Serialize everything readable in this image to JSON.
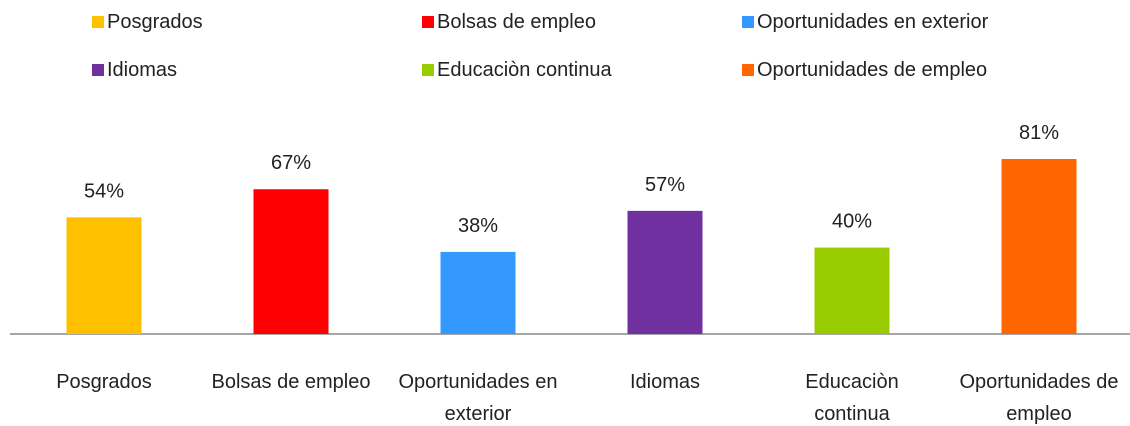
{
  "chart_data": {
    "type": "bar",
    "categories": [
      "Posgrados",
      "Bolsas de empleo",
      "Oportunidades en exterior",
      "Idiomas",
      "Educaciòn continua",
      "Oportunidades de empleo"
    ],
    "values": [
      54,
      67,
      38,
      57,
      40,
      81
    ],
    "value_labels": [
      "54%",
      "67%",
      "38%",
      "57%",
      "40%",
      "81%"
    ],
    "colors": [
      "#ffc000",
      "#ff0000",
      "#3399ff",
      "#7030a0",
      "#99cc00",
      "#ff6600"
    ],
    "legend": "top"
  }
}
